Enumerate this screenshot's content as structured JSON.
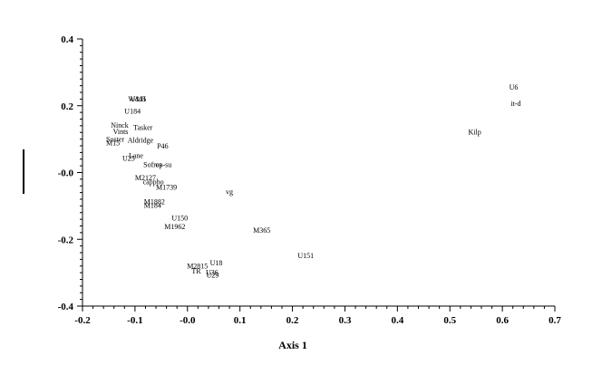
{
  "chart_data": {
    "type": "scatter",
    "title": "",
    "xlabel": "Axis 1",
    "ylabel": "",
    "xlim": [
      -0.2,
      0.7
    ],
    "ylim": [
      -0.4,
      0.4
    ],
    "grid": false,
    "x_ticks": [
      -0.2,
      -0.1,
      0.0,
      0.1,
      0.2,
      0.3,
      0.4,
      0.5,
      0.6,
      0.7
    ],
    "x_tick_labels": [
      "-0.2",
      "-0.1",
      "-0.0",
      "0.1",
      "0.2",
      "0.3",
      "0.4",
      "0.5",
      "0.6",
      "0.7"
    ],
    "y_ticks": [
      0.4,
      0.2,
      0.0,
      -0.2,
      -0.4
    ],
    "y_tick_labels": [
      "0.4",
      "0.2",
      "-0.0",
      "-0.2",
      "-0.4"
    ],
    "points": [
      {
        "label": "W&H",
        "x": -0.113,
        "y": 0.221
      },
      {
        "label": "U115",
        "x": -0.109,
        "y": 0.221
      },
      {
        "label": "U184",
        "x": -0.12,
        "y": 0.184
      },
      {
        "label": "Ninck",
        "x": -0.146,
        "y": 0.143
      },
      {
        "label": "Tasker",
        "x": -0.103,
        "y": 0.136
      },
      {
        "label": "Vints",
        "x": -0.142,
        "y": 0.124
      },
      {
        "label": "Soster",
        "x": -0.155,
        "y": 0.1
      },
      {
        "label": "Aldridge",
        "x": -0.114,
        "y": 0.098
      },
      {
        "label": "M15",
        "x": -0.155,
        "y": 0.089
      },
      {
        "label": "P46",
        "x": -0.058,
        "y": 0.08
      },
      {
        "label": "Lane",
        "x": -0.112,
        "y": 0.051
      },
      {
        "label": "U25",
        "x": -0.124,
        "y": 0.043
      },
      {
        "label": "Sofres",
        "x": -0.084,
        "y": 0.025
      },
      {
        "label": "op-su",
        "x": -0.061,
        "y": 0.025
      },
      {
        "label": "M2127",
        "x": -0.1,
        "y": -0.015
      },
      {
        "label": "cappho",
        "x": -0.085,
        "y": -0.027
      },
      {
        "label": "M1739",
        "x": -0.06,
        "y": -0.044
      },
      {
        "label": "vg",
        "x": 0.073,
        "y": -0.057
      },
      {
        "label": "M1882",
        "x": -0.083,
        "y": -0.087
      },
      {
        "label": "M184",
        "x": -0.083,
        "y": -0.097
      },
      {
        "label": "U150",
        "x": -0.03,
        "y": -0.136
      },
      {
        "label": "M1962",
        "x": -0.044,
        "y": -0.162
      },
      {
        "label": "M365",
        "x": 0.125,
        "y": -0.172
      },
      {
        "label": "U151",
        "x": 0.21,
        "y": -0.248
      },
      {
        "label": "U18",
        "x": 0.043,
        "y": -0.27
      },
      {
        "label": "M2815",
        "x": -0.001,
        "y": -0.279
      },
      {
        "label": "TR",
        "x": 0.008,
        "y": -0.294
      },
      {
        "label": "U36",
        "x": 0.035,
        "y": -0.298
      },
      {
        "label": "U29",
        "x": 0.036,
        "y": -0.306
      },
      {
        "label": "U6",
        "x": 0.613,
        "y": 0.256
      },
      {
        "label": "it-d",
        "x": 0.616,
        "y": 0.207
      },
      {
        "label": "Kilp",
        "x": 0.535,
        "y": 0.122
      }
    ]
  }
}
